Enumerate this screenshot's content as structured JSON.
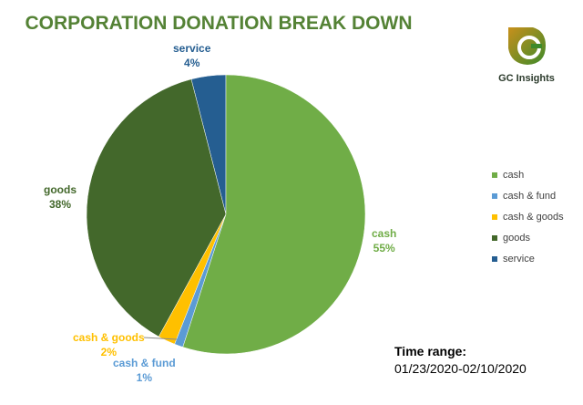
{
  "chart_data": {
    "type": "pie",
    "title": "CORPORATION DONATION BREAK DOWN",
    "categories": [
      "cash",
      "cash & fund",
      "cash & goods",
      "goods",
      "service"
    ],
    "values": [
      55,
      1,
      2,
      38,
      4
    ],
    "labels": [
      "55%",
      "1%",
      "2%",
      "38%",
      "4%"
    ],
    "colors": [
      "#70AD47",
      "#5B9BD5",
      "#FFC000",
      "#43682B",
      "#255E91"
    ],
    "legend_position": "right"
  },
  "logo": {
    "text": "GC Insights"
  },
  "time": {
    "label": "Time range:",
    "value": "01/23/2020-02/10/2020"
  }
}
